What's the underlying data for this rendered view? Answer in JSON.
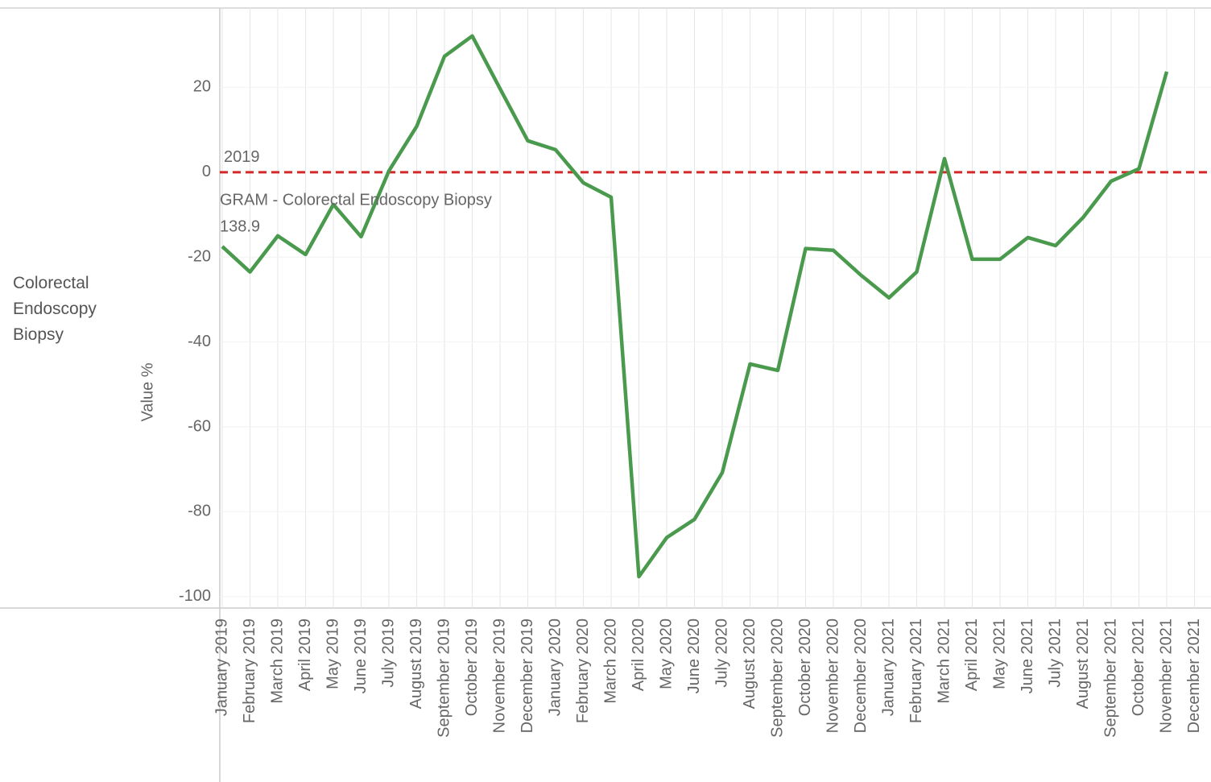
{
  "chart_data": {
    "type": "line",
    "row_header": "Colorectal Endoscopy Biopsy",
    "y_label": "Value %",
    "categories": [
      "January 2019",
      "February 2019",
      "March 2019",
      "April 2019",
      "May 2019",
      "June 2019",
      "July 2019",
      "August 2019",
      "September 2019",
      "October 2019",
      "November 2019",
      "December 2019",
      "January 2020",
      "February 2020",
      "March 2020",
      "April 2020",
      "May 2020",
      "June 2020",
      "July 2020",
      "August 2020",
      "September 2020",
      "October 2020",
      "November 2020",
      "December 2020",
      "January 2021",
      "February 2021",
      "March 2021",
      "April 2021",
      "May 2021",
      "June 2021",
      "July 2021",
      "August 2021",
      "September 2021",
      "October 2021",
      "November 2021",
      "December 2021"
    ],
    "series": [
      {
        "name": "GRAM - Colorectal Endoscopy Biopsy",
        "color": "#4a9a4e",
        "values": [
          -17.5,
          -23.5,
          -15,
          -19.4,
          -7.6,
          -15.2,
          0.3,
          10.8,
          27.3,
          32.1,
          19.7,
          7.4,
          5.3,
          -2.5,
          -5.9,
          -95.3,
          -86.1,
          -81.8,
          -70.8,
          -45.2,
          -46.7,
          -18,
          -18.4,
          -24.3,
          -29.6,
          -23.5,
          3.2,
          -20.5,
          -20.5,
          -15.4,
          -17.3,
          -10.6,
          -2.1,
          0.8,
          23.7,
          null
        ]
      }
    ],
    "reference_line": {
      "value": 0,
      "label": "2019",
      "color": "#d62728"
    },
    "annotation": {
      "lines": [
        "GRAM - Colorectal Endoscopy Biopsy",
        "138.9"
      ],
      "color": "#4a9a4e"
    },
    "ylim": [
      -102.7,
      38.3
    ],
    "yticks": [
      20,
      0,
      -20,
      -40,
      -60,
      -80,
      -100
    ],
    "grid": true
  }
}
